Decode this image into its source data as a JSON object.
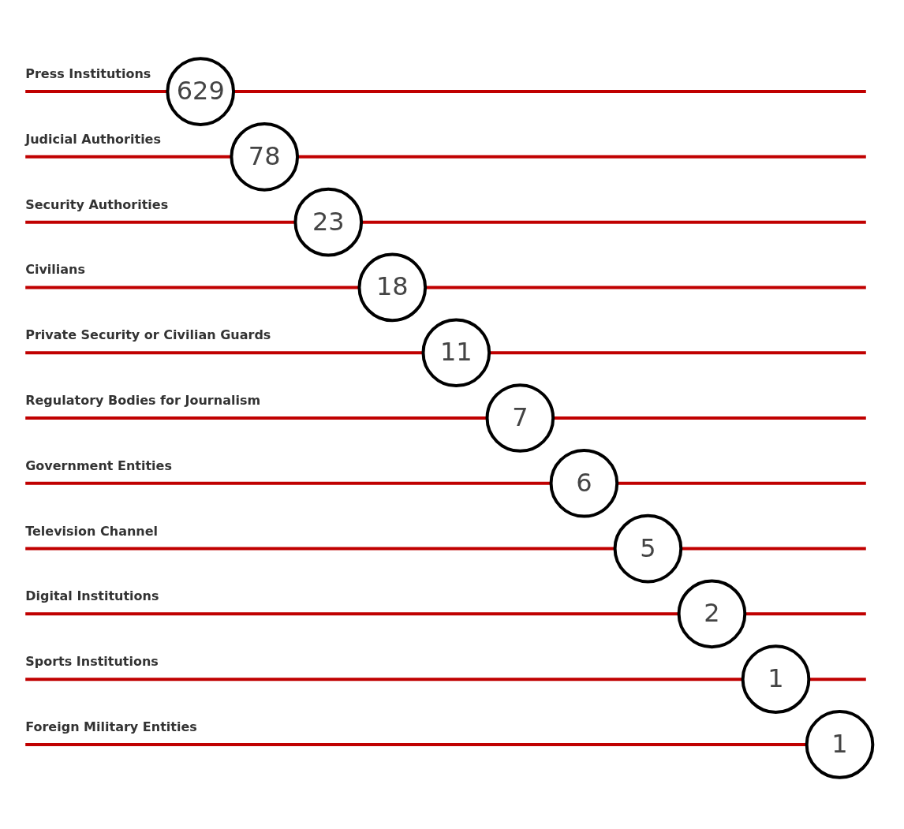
{
  "chart_data": {
    "type": "other",
    "categories": [
      "Press Institutions",
      "Judicial Authorities",
      "Security Authorities",
      "Civilians",
      "Private Security or Civilian Guards",
      "Regulatory Bodies for Journalism",
      "Government Entities",
      "Television Channel",
      "Digital Institutions",
      "Sports Institutions",
      "Foreign Military Entities"
    ],
    "values": [
      629,
      78,
      23,
      18,
      11,
      7,
      6,
      5,
      2,
      1,
      1
    ],
    "data_labels": true
  }
}
